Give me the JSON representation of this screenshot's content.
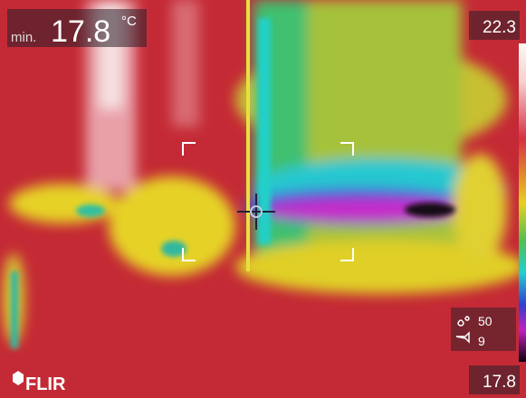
{
  "header": {
    "mode": "min.",
    "min_value": 17.8,
    "unit": "°C"
  },
  "scale": {
    "max": 22.3,
    "min": 17.8
  },
  "status": {
    "humidity": 50,
    "level": 9
  },
  "brand": "FLIR"
}
